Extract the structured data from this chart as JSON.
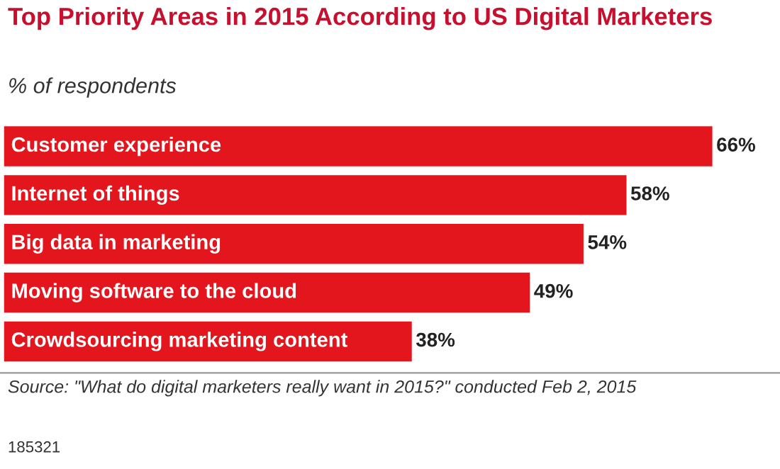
{
  "chart_data": {
    "type": "bar",
    "orientation": "horizontal",
    "title": "Top Priority Areas in 2015 According to US Digital Marketers",
    "subtitle": "% of respondents",
    "categories": [
      "Customer experience",
      "Internet of things",
      "Big data in marketing",
      "Moving software to the cloud",
      "Crowdsourcing marketing content"
    ],
    "values": [
      66,
      58,
      54,
      49,
      38
    ],
    "value_labels": [
      "66%",
      "58%",
      "54%",
      "49%",
      "38%"
    ],
    "color": "#e3161e",
    "annotations": [
      "Source: \"What do digital marketers really want in 2015?\" conducted Feb 2, 2015",
      "185321"
    ]
  }
}
